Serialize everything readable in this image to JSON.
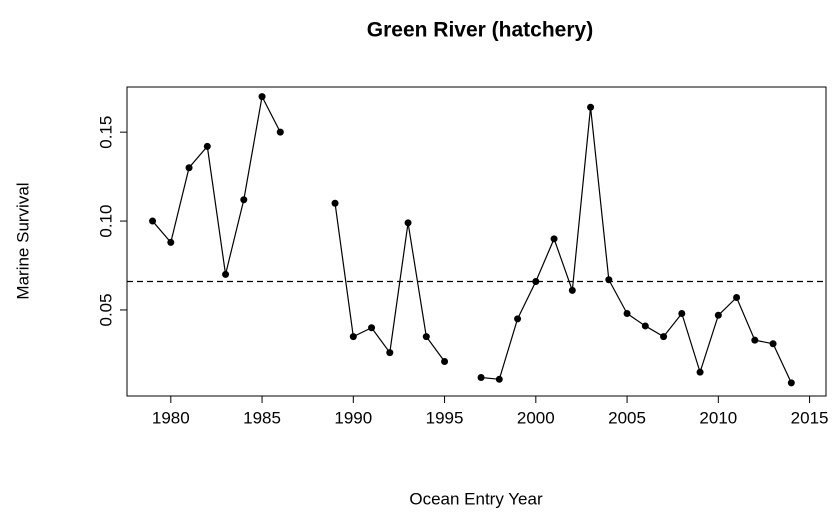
{
  "chart_data": {
    "type": "line",
    "title": "Green River (hatchery)",
    "x_label": "Ocean Entry Year",
    "y_label": "Marine Survival",
    "x": [
      1979,
      1980,
      1981,
      1982,
      1983,
      1984,
      1985,
      1986,
      1987,
      1988,
      1989,
      1990,
      1991,
      1992,
      1993,
      1994,
      1995,
      1996,
      1997,
      1998,
      1999,
      2000,
      2001,
      2002,
      2003,
      2004,
      2005,
      2006,
      2007,
      2008,
      2009,
      2010,
      2011,
      2012,
      2013,
      2014
    ],
    "series": [
      {
        "name": "Marine Survival",
        "color": "#000000",
        "values": [
          0.1,
          0.088,
          0.13,
          0.142,
          0.07,
          0.112,
          0.17,
          0.15,
          null,
          null,
          0.11,
          0.035,
          0.04,
          0.026,
          0.099,
          0.035,
          0.021,
          null,
          0.012,
          0.011,
          0.045,
          0.066,
          0.09,
          0.061,
          0.164,
          0.067,
          0.048,
          0.041,
          0.035,
          0.048,
          0.015,
          0.047,
          0.057,
          0.033,
          0.031,
          0.009
        ]
      }
    ],
    "hline": 0.066,
    "xlim": [
      1977.6,
      2015.9
    ],
    "ylim": [
      0.0016,
      0.1754
    ],
    "xticks": [
      1980,
      1985,
      1990,
      1995,
      2000,
      2005,
      2010,
      2015
    ],
    "yticks": [
      0.05,
      {
        "value": 0.1,
        "label": "0.10"
      },
      0.15
    ]
  }
}
